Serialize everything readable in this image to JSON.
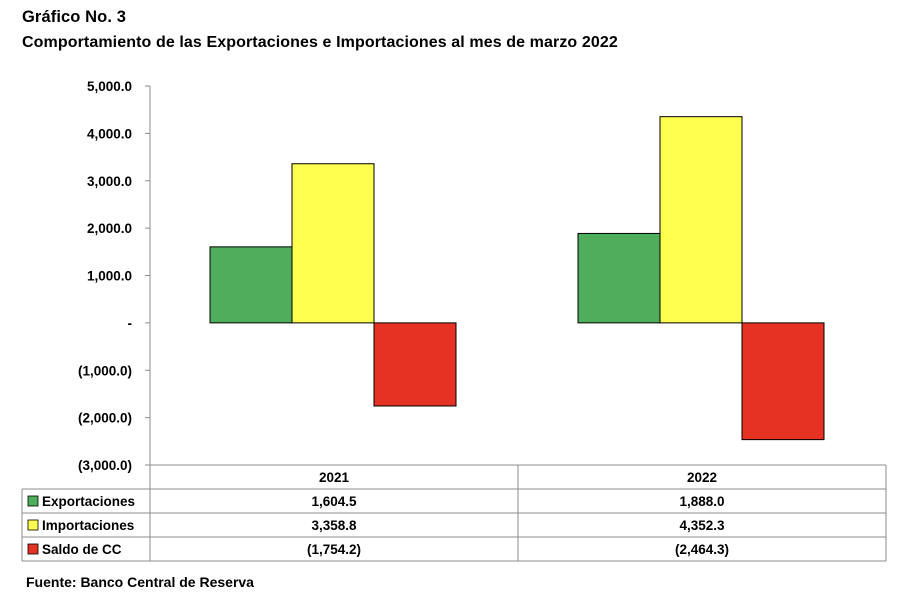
{
  "header": {
    "heading": "Gráfico No. 3",
    "title": "Comportamiento de las Exportaciones e Importaciones al mes de marzo 2022"
  },
  "footer": {
    "source": "Fuente: Banco Central de Reserva"
  },
  "chart_data": {
    "type": "bar",
    "title": "Comportamiento de las Exportaciones e Importaciones al mes de marzo 2022",
    "categories": [
      "2021",
      "2022"
    ],
    "series": [
      {
        "name": "Exportaciones",
        "values": [
          1604.5,
          1888.0
        ],
        "labels": [
          "1,604.5",
          "1,888.0"
        ],
        "color": "#4fae5c"
      },
      {
        "name": "Importaciones",
        "values": [
          3358.8,
          4352.3
        ],
        "labels": [
          "3,358.8",
          "4,352.3"
        ],
        "color": "#ffff4f"
      },
      {
        "name": "Saldo de CC",
        "values": [
          -1754.2,
          -2464.3
        ],
        "labels": [
          "(1,754.2)",
          "(2,464.3)"
        ],
        "color": "#e63223"
      }
    ],
    "ylim": [
      -3000,
      5000
    ],
    "yticks": [
      5000,
      4000,
      3000,
      2000,
      1000,
      0,
      -1000,
      -2000,
      -3000
    ],
    "ytick_labels": [
      "5,000.0",
      "4,000.0",
      "3,000.0",
      "2,000.0",
      "1,000.0",
      "-",
      "(1,000.0)",
      "(2,000.0)",
      "(3,000.0)"
    ],
    "grid": false,
    "legend": "data-table"
  }
}
